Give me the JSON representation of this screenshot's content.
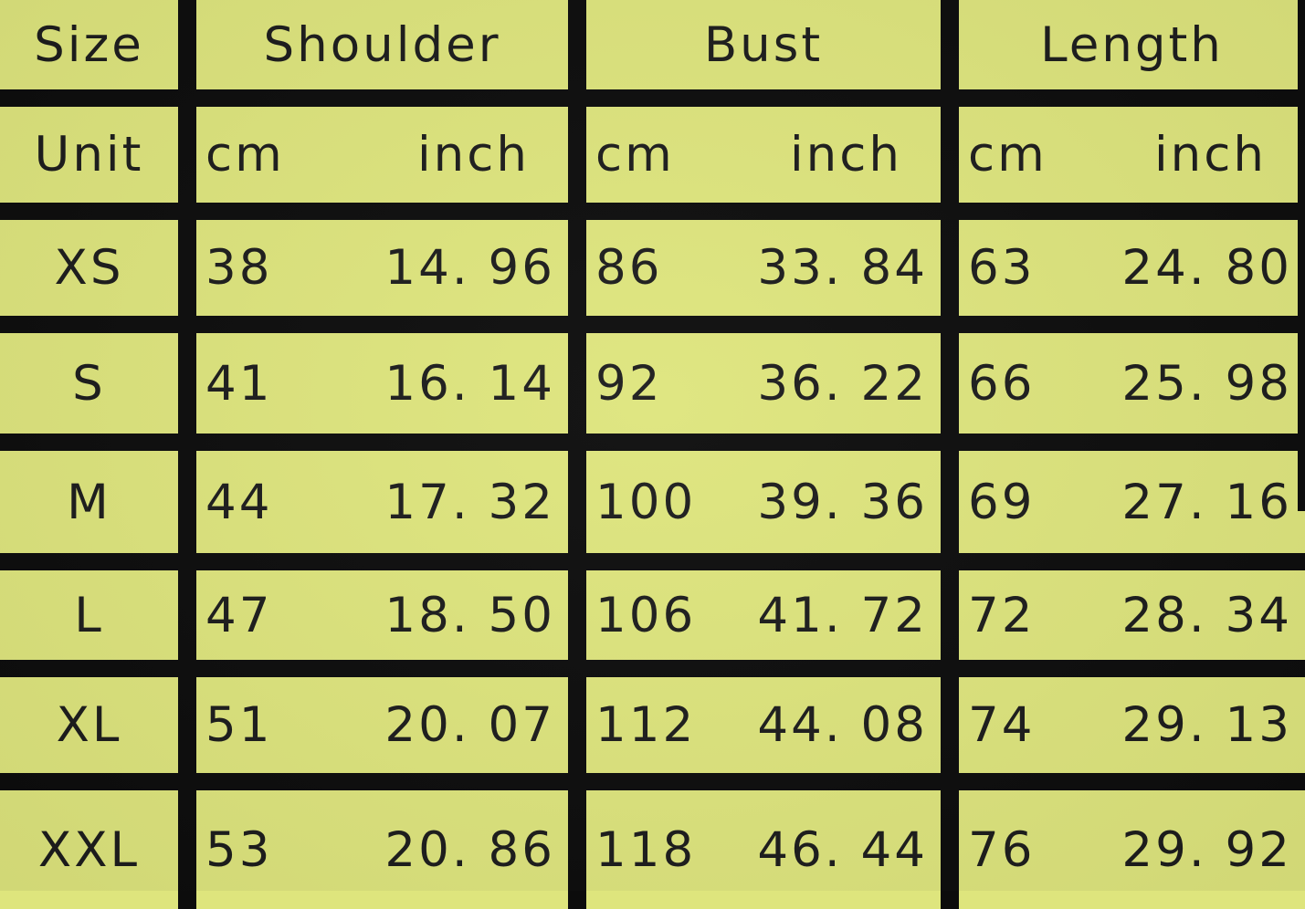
{
  "table": {
    "header": {
      "size": "Size",
      "shoulder": "Shoulder",
      "bust": "Bust",
      "length": "Length"
    },
    "unit_row": {
      "label": "Unit",
      "cm": "cm",
      "inch": "inch"
    },
    "rows": [
      {
        "size": "XS",
        "shoulder_cm": "38",
        "shoulder_inch": "14. 96",
        "bust_cm": "86",
        "bust_inch": "33. 84",
        "length_cm": "63",
        "length_inch": "24. 80"
      },
      {
        "size": "S",
        "shoulder_cm": "41",
        "shoulder_inch": "16. 14",
        "bust_cm": "92",
        "bust_inch": "36. 22",
        "length_cm": "66",
        "length_inch": "25. 98"
      },
      {
        "size": "M",
        "shoulder_cm": "44",
        "shoulder_inch": "17. 32",
        "bust_cm": "100",
        "bust_inch": "39. 36",
        "length_cm": "69",
        "length_inch": "27. 16"
      },
      {
        "size": "L",
        "shoulder_cm": "47",
        "shoulder_inch": "18. 50",
        "bust_cm": "106",
        "bust_inch": "41. 72",
        "length_cm": "72",
        "length_inch": "28. 34"
      },
      {
        "size": "XL",
        "shoulder_cm": "51",
        "shoulder_inch": "20. 07",
        "bust_cm": "112",
        "bust_inch": "44. 08",
        "length_cm": "74",
        "length_inch": "29. 13"
      },
      {
        "size": "XXL",
        "shoulder_cm": "53",
        "shoulder_inch": "20. 86",
        "bust_cm": "118",
        "bust_inch": "46. 44",
        "length_cm": "76",
        "length_inch": "29. 92"
      }
    ]
  },
  "colors": {
    "cell_background": "#dee57d",
    "grid_lines": "#0c0c0c",
    "text": "#1c1c1c"
  },
  "chart_data": {
    "type": "table",
    "title": "Garment size chart",
    "columns": [
      "Size",
      "Shoulder cm",
      "Shoulder inch",
      "Bust cm",
      "Bust inch",
      "Length cm",
      "Length inch"
    ],
    "rows": [
      [
        "XS",
        38,
        14.96,
        86,
        33.84,
        63,
        24.8
      ],
      [
        "S",
        41,
        16.14,
        92,
        36.22,
        66,
        25.98
      ],
      [
        "M",
        44,
        17.32,
        100,
        39.36,
        69,
        27.16
      ],
      [
        "L",
        47,
        18.5,
        106,
        41.72,
        72,
        28.34
      ],
      [
        "XL",
        51,
        20.07,
        112,
        44.08,
        74,
        29.13
      ],
      [
        "XXL",
        53,
        20.86,
        118,
        46.44,
        76,
        29.92
      ]
    ]
  }
}
